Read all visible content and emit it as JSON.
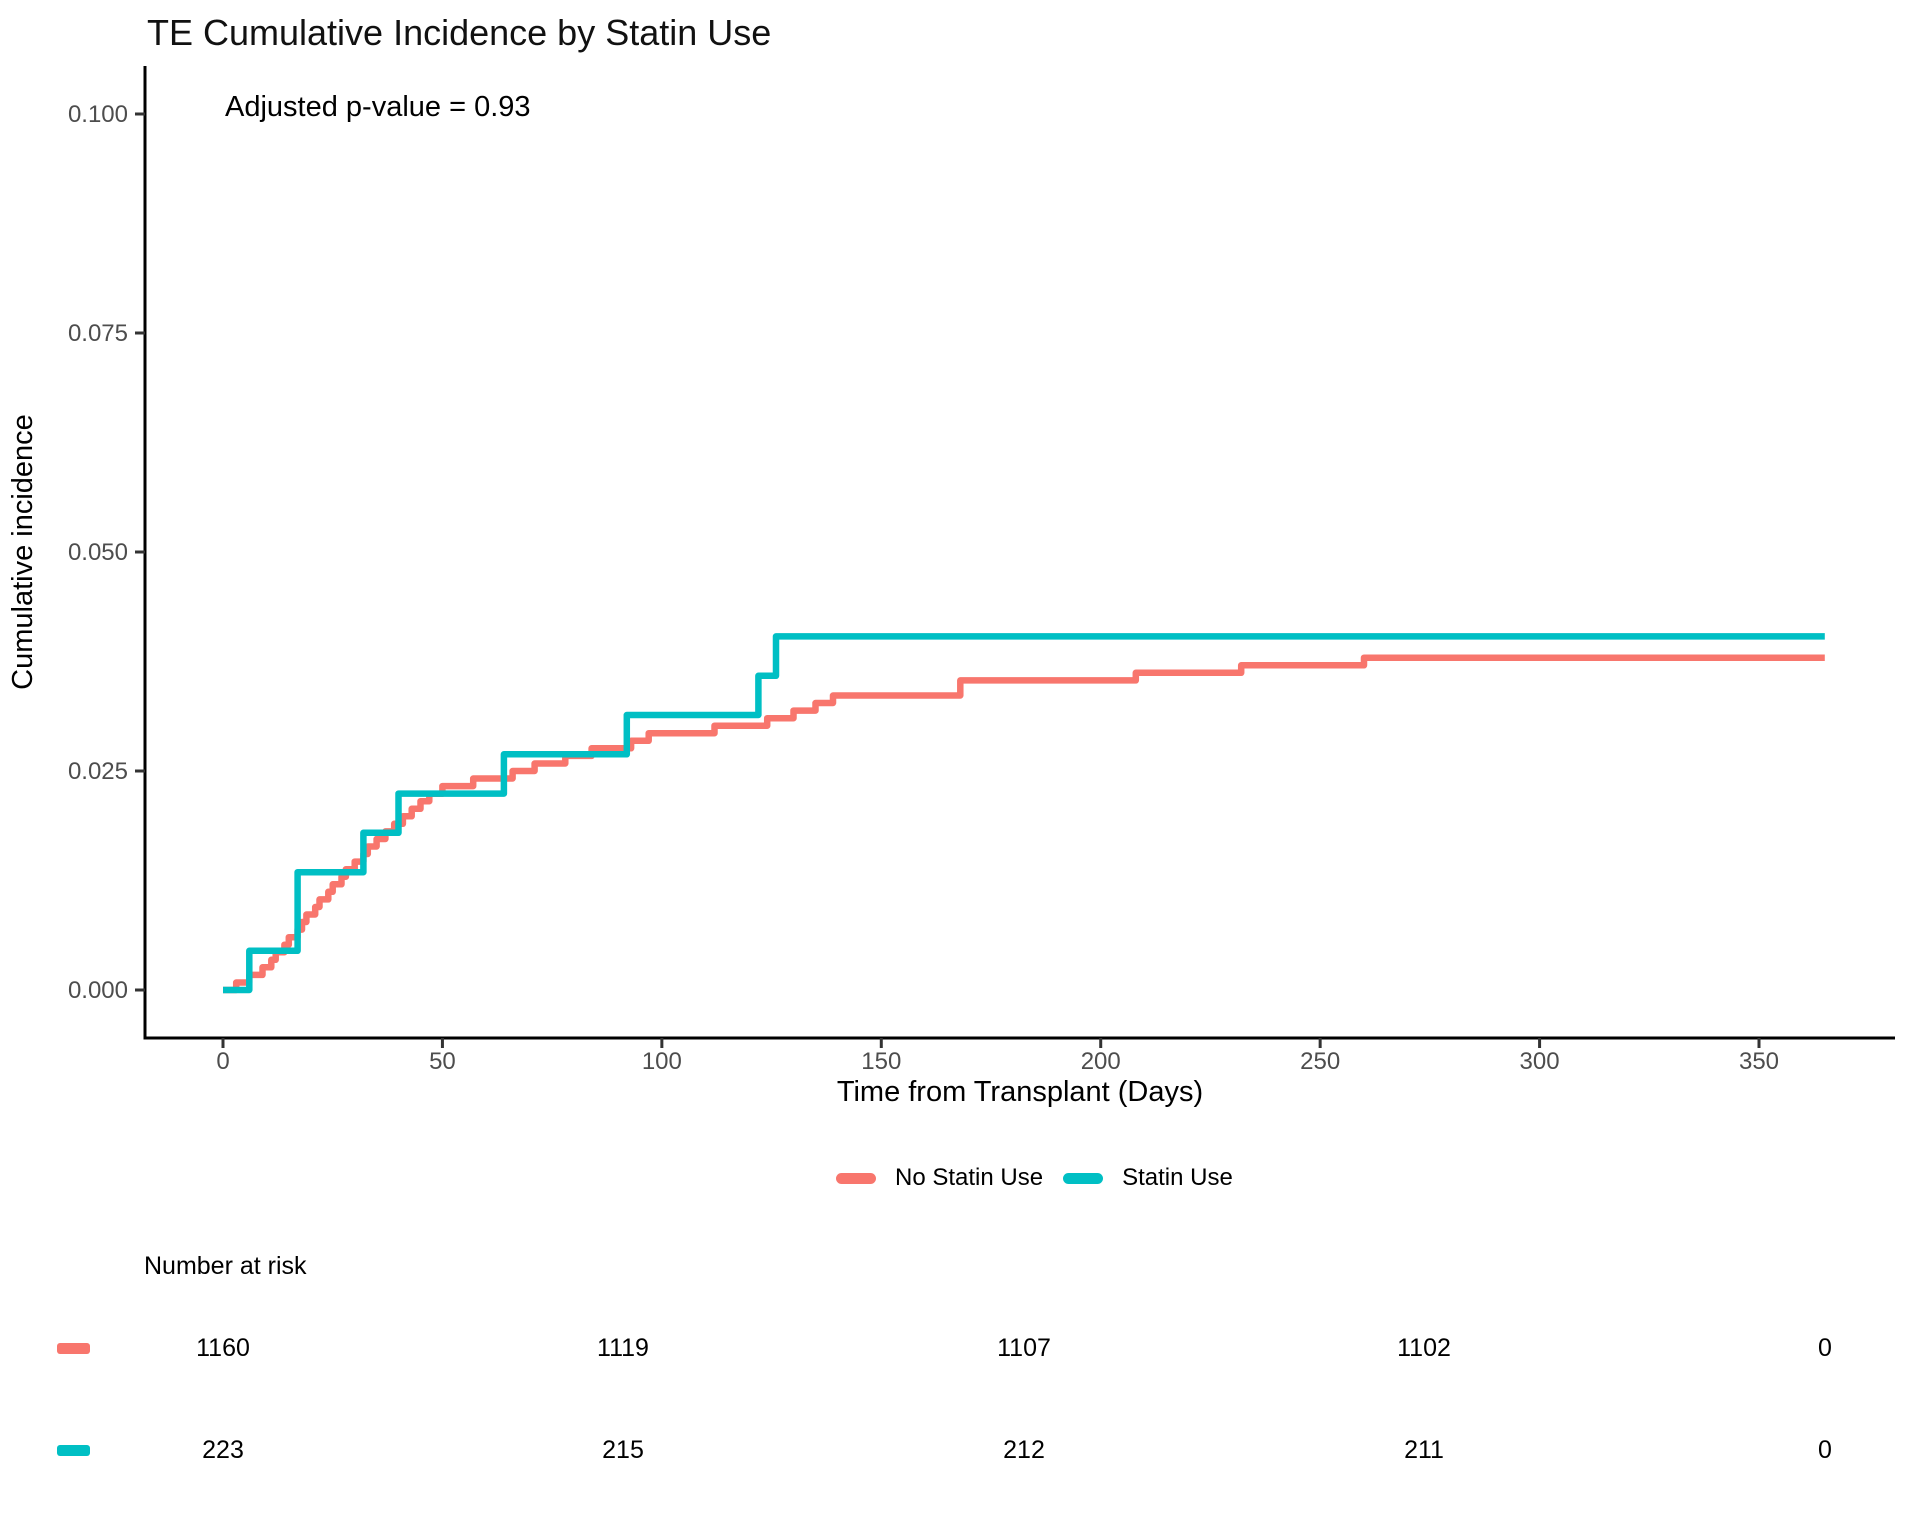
{
  "title": "TE Cumulative Incidence by Statin Use",
  "annotation": "Adjusted p-value = 0.93",
  "axes": {
    "x_label": "Time from Transplant (Days)",
    "y_label": "Cumulative incidence"
  },
  "colors": {
    "no_statin": "#F8766D",
    "statin": "#00BFC4",
    "axis_text": "#4D4D4D",
    "axis_line": "#000000"
  },
  "legend": {
    "items": [
      {
        "label": "No Statin Use",
        "color": "#F8766D"
      },
      {
        "label": "Statin Use",
        "color": "#00BFC4"
      }
    ]
  },
  "risk_table": {
    "heading": "Number at risk",
    "times": [
      0,
      91.25,
      182.5,
      273.75,
      365
    ],
    "rows": [
      {
        "group": "No Statin Use",
        "color": "#F8766D",
        "counts": [
          "1160",
          "1119",
          "1107",
          "1102",
          "0"
        ]
      },
      {
        "group": "Statin Use",
        "color": "#00BFC4",
        "counts": [
          "223",
          "215",
          "212",
          "211",
          "0"
        ]
      }
    ]
  },
  "chart_data": {
    "type": "line",
    "subtype": "step-cumulative-incidence",
    "title": "TE Cumulative Incidence by Statin Use",
    "xlabel": "Time from Transplant (Days)",
    "ylabel": "Cumulative incidence",
    "xlim": [
      -18,
      380
    ],
    "ylim": [
      -0.0055,
      0.105
    ],
    "grid": false,
    "legend_position": "bottom",
    "x_ticks": [
      {
        "value": 0,
        "label": "0"
      },
      {
        "value": 50,
        "label": "50"
      },
      {
        "value": 100,
        "label": "100"
      },
      {
        "value": 150,
        "label": "150"
      },
      {
        "value": 200,
        "label": "200"
      },
      {
        "value": 250,
        "label": "250"
      },
      {
        "value": 300,
        "label": "300"
      },
      {
        "value": 350,
        "label": "350"
      }
    ],
    "y_ticks": [
      {
        "value": 0.0,
        "label": "0.000"
      },
      {
        "value": 0.025,
        "label": "0.025"
      },
      {
        "value": 0.05,
        "label": "0.050"
      },
      {
        "value": 0.075,
        "label": "0.075"
      },
      {
        "value": 0.1,
        "label": "0.100"
      }
    ],
    "series": [
      {
        "name": "No Statin Use",
        "color": "#F8766D",
        "n_at_start": 1160,
        "start_day": 0,
        "end_day": 365,
        "steps": [
          [
            3,
            0.00086
          ],
          [
            6,
            0.00172
          ],
          [
            9,
            0.00259
          ],
          [
            11,
            0.00345
          ],
          [
            12,
            0.00431
          ],
          [
            14,
            0.00517
          ],
          [
            15,
            0.00603
          ],
          [
            17,
            0.0069
          ],
          [
            18,
            0.00776
          ],
          [
            19,
            0.00862
          ],
          [
            21,
            0.00948
          ],
          [
            22,
            0.01034
          ],
          [
            24,
            0.01121
          ],
          [
            25,
            0.01207
          ],
          [
            27,
            0.01293
          ],
          [
            28,
            0.01379
          ],
          [
            30,
            0.01466
          ],
          [
            32,
            0.01552
          ],
          [
            33,
            0.01638
          ],
          [
            35,
            0.01724
          ],
          [
            37,
            0.0181
          ],
          [
            39,
            0.01897
          ],
          [
            41,
            0.01983
          ],
          [
            43,
            0.02069
          ],
          [
            45,
            0.02155
          ],
          [
            47,
            0.02241
          ],
          [
            50,
            0.02328
          ],
          [
            57,
            0.02414
          ],
          [
            66,
            0.025
          ],
          [
            71,
            0.02586
          ],
          [
            78,
            0.02672
          ],
          [
            84,
            0.02759
          ],
          [
            93,
            0.02845
          ],
          [
            97,
            0.02931
          ],
          [
            112,
            0.03017
          ],
          [
            124,
            0.03103
          ],
          [
            130,
            0.0319
          ],
          [
            135,
            0.03276
          ],
          [
            139,
            0.03362
          ],
          [
            168,
            0.03534
          ],
          [
            208,
            0.03621
          ],
          [
            232,
            0.03707
          ],
          [
            260,
            0.03793
          ]
        ]
      },
      {
        "name": "Statin Use",
        "color": "#00BFC4",
        "n_at_start": 223,
        "start_day": 0,
        "end_day": 365,
        "steps": [
          [
            6,
            0.00448
          ],
          [
            17,
            0.01345
          ],
          [
            32,
            0.01794
          ],
          [
            40,
            0.02242
          ],
          [
            64,
            0.02691
          ],
          [
            92,
            0.03139
          ],
          [
            122,
            0.03587
          ],
          [
            126,
            0.04036
          ]
        ]
      }
    ]
  }
}
